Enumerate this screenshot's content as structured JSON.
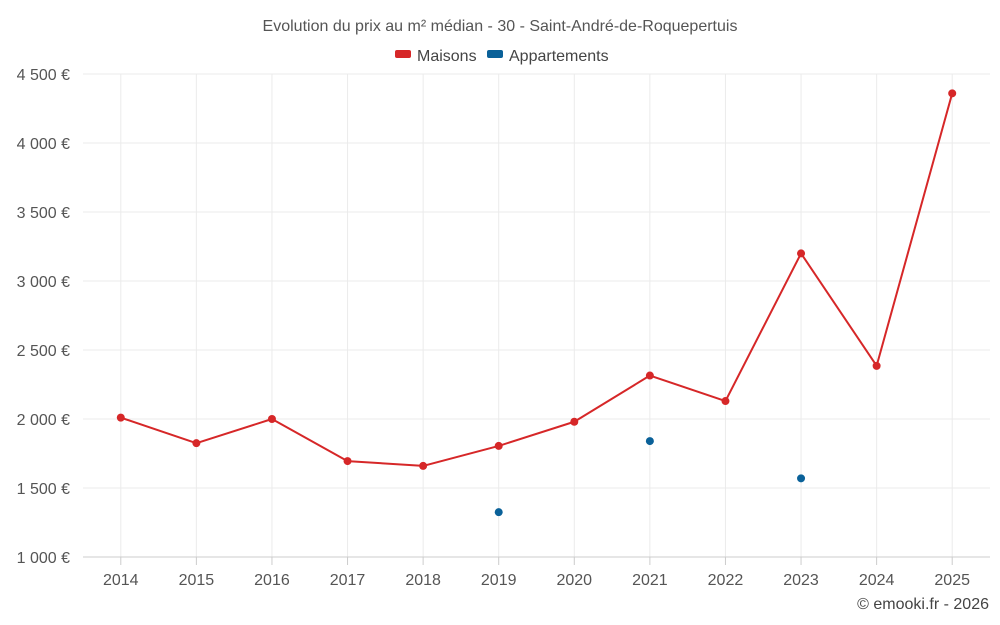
{
  "chart_data": {
    "type": "line",
    "title": "Evolution du prix au m² médian - 30 - Saint-André-de-Roquepertuis",
    "categories": [
      "2014",
      "2015",
      "2016",
      "2017",
      "2018",
      "2019",
      "2020",
      "2021",
      "2022",
      "2023",
      "2024",
      "2025"
    ],
    "y_ticks": [
      "1 000 €",
      "1 500 €",
      "2 000 €",
      "2 500 €",
      "3 000 €",
      "3 500 €",
      "4 000 €",
      "4 500 €"
    ],
    "ylim": [
      1000,
      4500
    ],
    "grid": true,
    "legend_position": "top-center",
    "series": [
      {
        "name": "Maisons",
        "color": "#d62728",
        "connect": true,
        "values": [
          2010,
          1825,
          2000,
          1695,
          1660,
          1805,
          1980,
          2315,
          2130,
          3200,
          2385,
          4360
        ]
      },
      {
        "name": "Appartements",
        "color": "#0a6199",
        "connect": false,
        "values": [
          null,
          null,
          null,
          null,
          null,
          1325,
          null,
          1840,
          null,
          1570,
          null,
          null
        ]
      }
    ],
    "credit": "© emooki.fr - 2026"
  }
}
